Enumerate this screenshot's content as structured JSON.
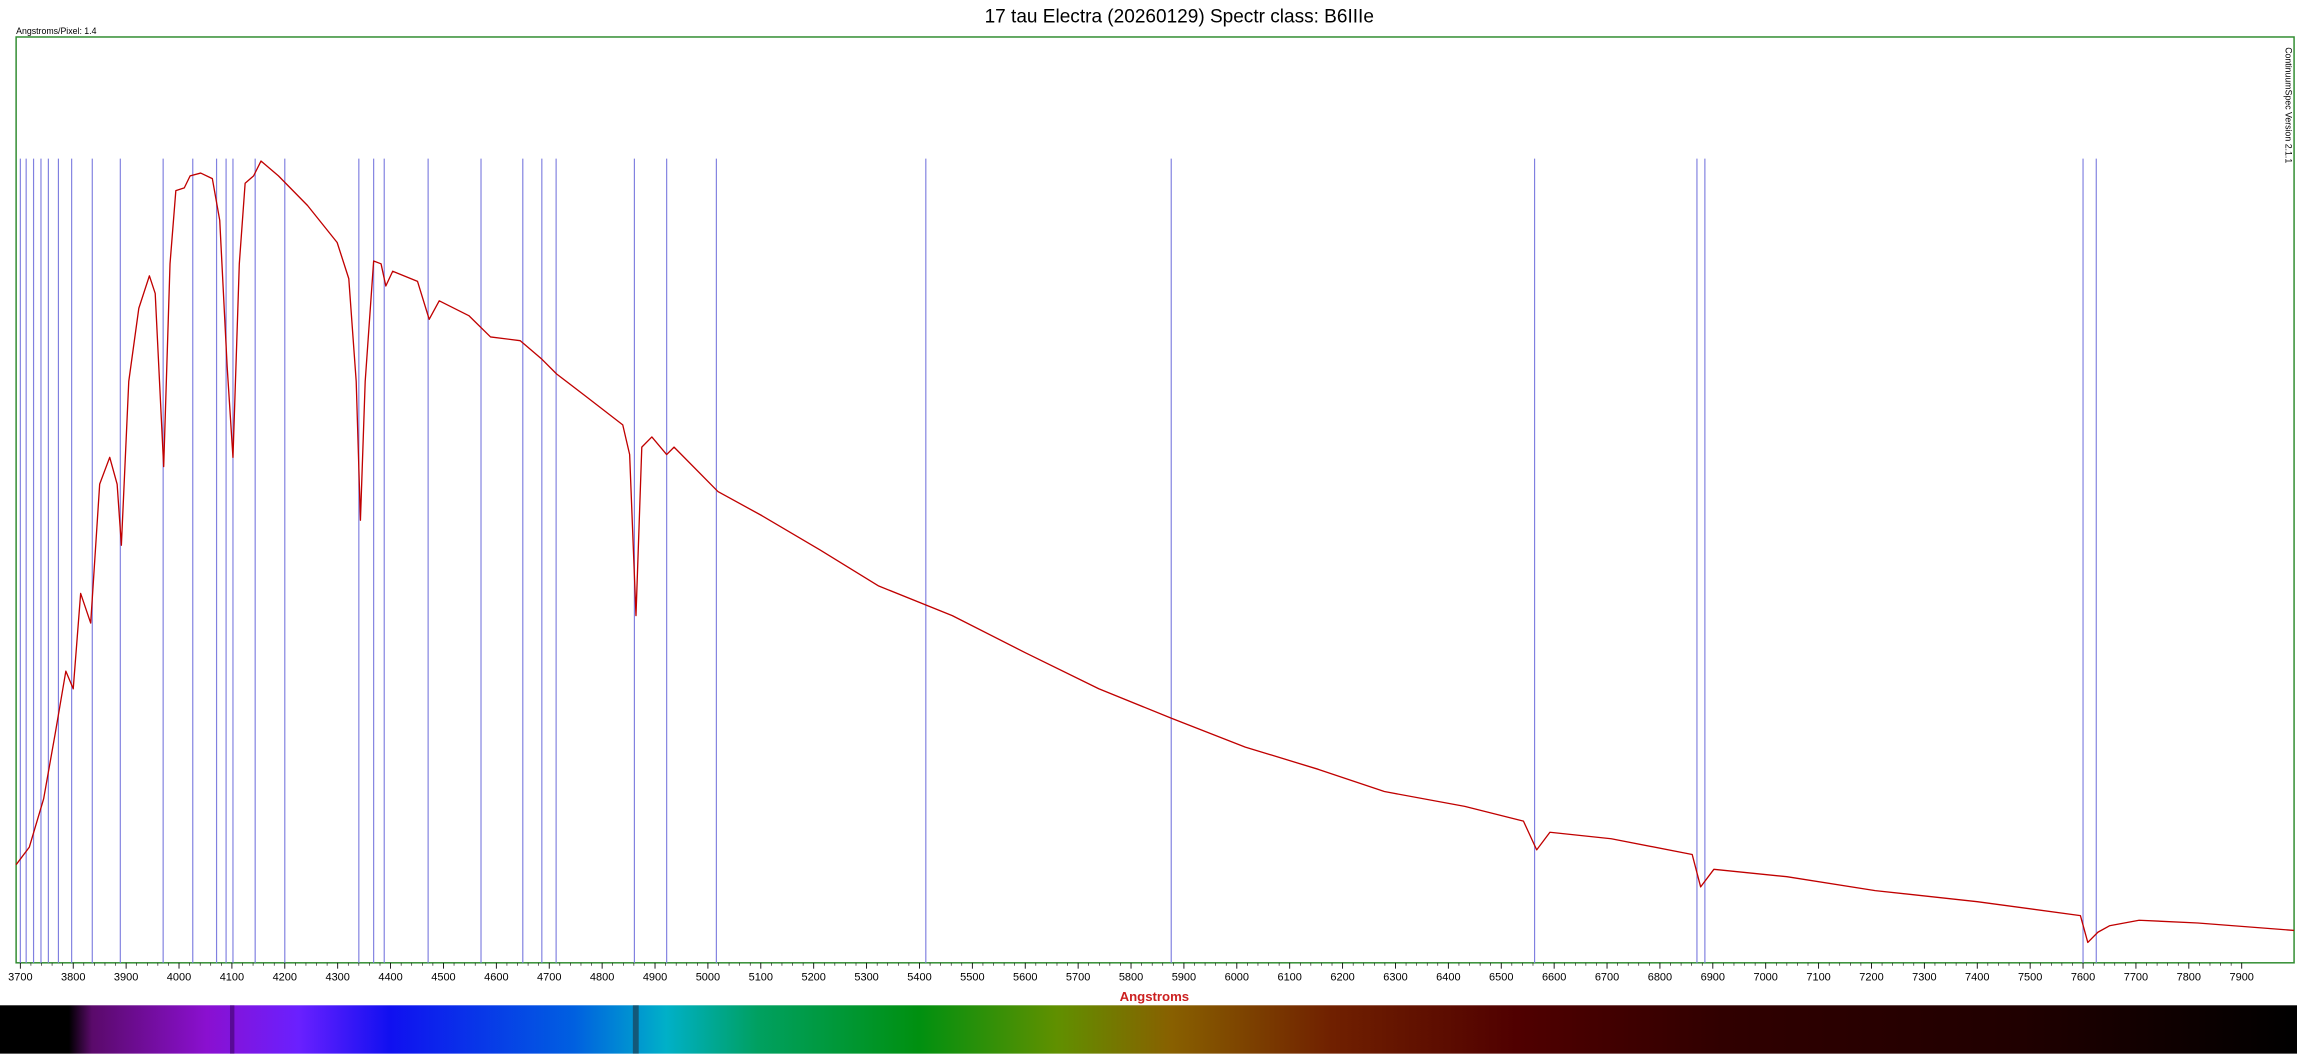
{
  "chart_data": {
    "type": "line",
    "title": "17 tau Electra  (20260129) Spectr class: B6IIIe",
    "annotation": "Angstroms/Pixel: 1.4",
    "side_text": "ContinuumSpec Version 2.1.1",
    "xlabel": "Angstroms",
    "color": "#c00000",
    "x": [
      3692,
      3717,
      3744,
      3766,
      3786,
      3800,
      3814,
      3833,
      3850,
      3869,
      3883,
      3891,
      3905,
      3924,
      3944,
      3955,
      3971,
      3983,
      3994,
      4010,
      4021,
      4041,
      4063,
      4077,
      4091,
      4102,
      4114,
      4125,
      4141,
      4155,
      4188,
      4243,
      4299,
      4321,
      4335,
      4343,
      4352,
      4368,
      4382,
      4391,
      4404,
      4451,
      4473,
      4492,
      4548,
      4589,
      4645,
      4686,
      4714,
      4769,
      4839,
      4852,
      4864,
      4875,
      4894,
      4922,
      4936,
      5019,
      5102,
      5212,
      5323,
      5462,
      5600,
      5739,
      5877,
      6016,
      6154,
      6279,
      6431,
      6542,
      6567,
      6592,
      6708,
      6861,
      6877,
      6902,
      7040,
      7207,
      7400,
      7595,
      7609,
      7628,
      7650,
      7706,
      7817,
      7999
    ],
    "values": [
      0.106,
      0.125,
      0.177,
      0.248,
      0.315,
      0.296,
      0.399,
      0.367,
      0.517,
      0.546,
      0.517,
      0.451,
      0.628,
      0.707,
      0.742,
      0.723,
      0.536,
      0.755,
      0.834,
      0.837,
      0.85,
      0.853,
      0.847,
      0.802,
      0.644,
      0.546,
      0.755,
      0.842,
      0.85,
      0.866,
      0.85,
      0.818,
      0.778,
      0.739,
      0.628,
      0.478,
      0.628,
      0.758,
      0.755,
      0.731,
      0.747,
      0.736,
      0.695,
      0.715,
      0.699,
      0.676,
      0.672,
      0.652,
      0.636,
      0.612,
      0.581,
      0.549,
      0.375,
      0.557,
      0.568,
      0.549,
      0.557,
      0.509,
      0.483,
      0.446,
      0.407,
      0.375,
      0.335,
      0.296,
      0.264,
      0.233,
      0.209,
      0.185,
      0.169,
      0.153,
      0.122,
      0.141,
      0.134,
      0.117,
      0.082,
      0.101,
      0.093,
      0.078,
      0.066,
      0.051,
      0.022,
      0.033,
      0.04,
      0.046,
      0.043,
      0.035
    ],
    "xlim": [
      3692,
      7999
    ],
    "ylim": [
      0,
      1
    ],
    "xticks": [
      3700,
      3800,
      3900,
      4000,
      4100,
      4200,
      4300,
      4400,
      4500,
      4600,
      4700,
      4800,
      4900,
      5000,
      5100,
      5200,
      5300,
      5400,
      5500,
      5600,
      5700,
      5800,
      5900,
      6000,
      6100,
      6200,
      6300,
      6400,
      6500,
      6600,
      6700,
      6800,
      6900,
      7000,
      7100,
      7200,
      7300,
      7400,
      7500,
      7600,
      7700,
      7800,
      7900
    ],
    "reference_lines": {
      "color": "#8080e0",
      "x": [
        3700,
        3711,
        3725,
        3739,
        3753,
        3772,
        3797,
        3836,
        3889,
        3970,
        4026,
        4071,
        4089,
        4102,
        4144,
        4200,
        4340,
        4368,
        4388,
        4471,
        4571,
        4650,
        4686,
        4713,
        4861,
        4922,
        5016,
        5412,
        5876,
        6563,
        6870,
        6885,
        7600,
        7625
      ]
    }
  }
}
